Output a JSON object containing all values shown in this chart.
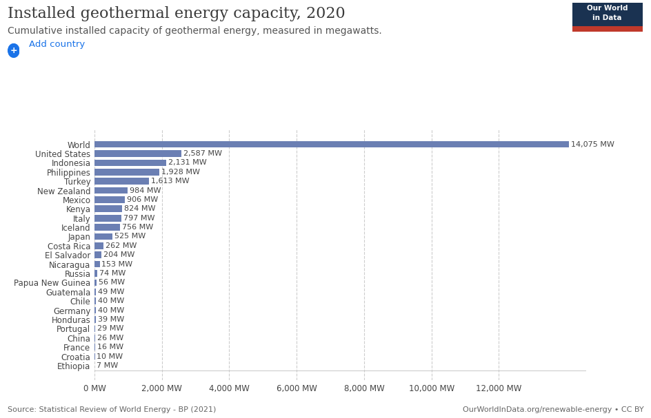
{
  "title": "Installed geothermal energy capacity, 2020",
  "subtitle": "Cumulative installed capacity of geothermal energy, measured in megawatts.",
  "add_country_label": "Add country",
  "categories": [
    "World",
    "United States",
    "Indonesia",
    "Philippines",
    "Turkey",
    "New Zealand",
    "Mexico",
    "Kenya",
    "Italy",
    "Iceland",
    "Japan",
    "Costa Rica",
    "El Salvador",
    "Nicaragua",
    "Russia",
    "Papua New Guinea",
    "Guatemala",
    "Chile",
    "Germany",
    "Honduras",
    "Portugal",
    "China",
    "France",
    "Croatia",
    "Ethiopia"
  ],
  "values": [
    14075,
    2587,
    2131,
    1928,
    1613,
    984,
    906,
    824,
    797,
    756,
    525,
    262,
    204,
    153,
    74,
    56,
    49,
    40,
    40,
    39,
    29,
    26,
    16,
    10,
    7
  ],
  "bar_color": "#6b7fb3",
  "label_color": "#444444",
  "value_label_color": "#444444",
  "background_color": "#ffffff",
  "grid_color": "#cccccc",
  "xlim": [
    0,
    14600
  ],
  "xtick_values": [
    0,
    2000,
    4000,
    6000,
    8000,
    10000,
    12000
  ],
  "xtick_labels": [
    "0 MW",
    "2,000 MW",
    "4,000 MW",
    "6,000 MW",
    "8,000 MW",
    "10,000 MW",
    "12,000 MW"
  ],
  "source_text": "Source: Statistical Review of World Energy - BP (2021)",
  "owid_text": "OurWorldInData.org/renewable-energy • CC BY",
  "logo_bg": "#1a3251",
  "logo_text": "Our World\nin Data",
  "logo_bar_color": "#c0392b",
  "title_fontsize": 16,
  "subtitle_fontsize": 10,
  "tick_fontsize": 8.5,
  "bar_label_fontsize": 8,
  "figsize": [
    9.45,
    6.07
  ],
  "dpi": 100
}
